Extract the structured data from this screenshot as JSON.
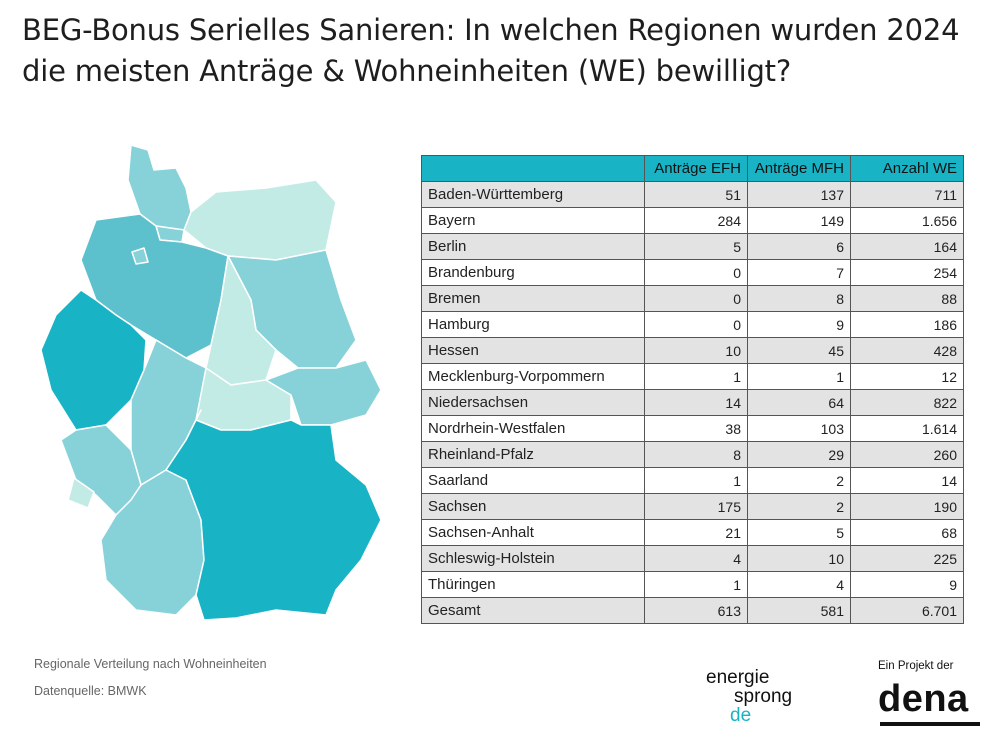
{
  "title": "BEG-Bonus Serielles Sanieren: In welchen Regionen wurden 2024 die meisten Anträge & Wohneinheiten (WE) bewilligt?",
  "colors": {
    "header": "#19b3c6",
    "row_alt": "#e3e3e3",
    "scale": [
      "#c3ebe6",
      "#86d2d8",
      "#5cc1cc",
      "#19b3c6"
    ],
    "brand_de": "#19b3c6"
  },
  "chart_data": [
    {
      "type": "table",
      "columns": [
        "",
        "Anträge EFH",
        "Anträge MFH",
        "Anzahl WE"
      ],
      "rows": [
        {
          "region": "Baden-Württemberg",
          "efh": "51",
          "mfh": "137",
          "we": "711"
        },
        {
          "region": "Bayern",
          "efh": "284",
          "mfh": "149",
          "we": "1.656"
        },
        {
          "region": "Berlin",
          "efh": "5",
          "mfh": "6",
          "we": "164"
        },
        {
          "region": "Brandenburg",
          "efh": "0",
          "mfh": "7",
          "we": "254"
        },
        {
          "region": "Bremen",
          "efh": "0",
          "mfh": "8",
          "we": "88"
        },
        {
          "region": "Hamburg",
          "efh": "0",
          "mfh": "9",
          "we": "186"
        },
        {
          "region": "Hessen",
          "efh": "10",
          "mfh": "45",
          "we": "428"
        },
        {
          "region": "Mecklenburg-Vorpommern",
          "efh": "1",
          "mfh": "1",
          "we": "12"
        },
        {
          "region": "Niedersachsen",
          "efh": "14",
          "mfh": "64",
          "we": "822"
        },
        {
          "region": "Nordrhein-Westfalen",
          "efh": "38",
          "mfh": "103",
          "we": "1.614"
        },
        {
          "region": "Rheinland-Pfalz",
          "efh": "8",
          "mfh": "29",
          "we": "260"
        },
        {
          "region": "Saarland",
          "efh": "1",
          "mfh": "2",
          "we": "14"
        },
        {
          "region": "Sachsen",
          "efh": "175",
          "mfh": "2",
          "we": "190"
        },
        {
          "region": "Sachsen-Anhalt",
          "efh": "21",
          "mfh": "5",
          "we": "68"
        },
        {
          "region": "Schleswig-Holstein",
          "efh": "4",
          "mfh": "10",
          "we": "225"
        },
        {
          "region": "Thüringen",
          "efh": "1",
          "mfh": "4",
          "we": "9"
        }
      ],
      "total": {
        "region": "Gesamt",
        "efh": "613",
        "mfh": "581",
        "we": "6.701"
      }
    },
    {
      "type": "heatmap",
      "map": "Germany by federal state",
      "value": "Anzahl WE",
      "regions": [
        {
          "name": "Schleswig-Holstein",
          "shade": 1
        },
        {
          "name": "Hamburg",
          "shade": 1
        },
        {
          "name": "Mecklenburg-Vorpommern",
          "shade": 0
        },
        {
          "name": "Niedersachsen",
          "shade": 2
        },
        {
          "name": "Bremen",
          "shade": 1
        },
        {
          "name": "Berlin",
          "shade": 1
        },
        {
          "name": "Brandenburg",
          "shade": 1
        },
        {
          "name": "Sachsen-Anhalt",
          "shade": 0
        },
        {
          "name": "Nordrhein-Westfalen",
          "shade": 3
        },
        {
          "name": "Hessen",
          "shade": 1
        },
        {
          "name": "Thüringen",
          "shade": 0
        },
        {
          "name": "Sachsen",
          "shade": 1
        },
        {
          "name": "Rheinland-Pfalz",
          "shade": 1
        },
        {
          "name": "Saarland",
          "shade": 0
        },
        {
          "name": "Baden-Württemberg",
          "shade": 1
        },
        {
          "name": "Bayern",
          "shade": 3
        }
      ]
    }
  ],
  "footer": {
    "note": "Regionale Verteilung nach Wohneinheiten",
    "source": "Datenquelle: BMWK"
  },
  "logos": {
    "es_line1": "energie",
    "es_line2": "sprong",
    "es_line3": "de",
    "dena_tagline": "Ein Projekt der",
    "dena": "dena"
  }
}
